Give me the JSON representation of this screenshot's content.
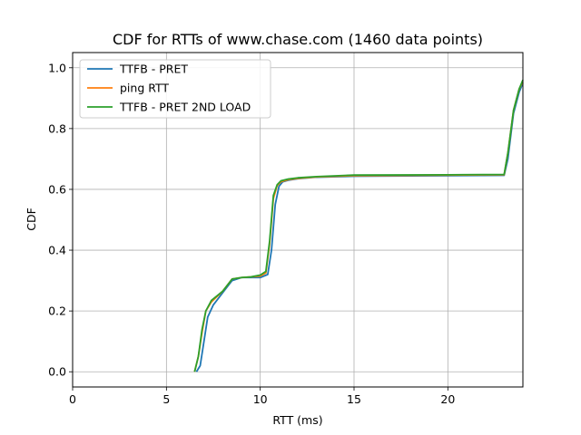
{
  "chart_data": {
    "type": "line",
    "title": "CDF for RTTs of www.chase.com (1460 data points)",
    "xlabel": "RTT (ms)",
    "ylabel": "CDF",
    "xlim": [
      0,
      24
    ],
    "ylim": [
      -0.05,
      1.05
    ],
    "xticks": [
      0,
      5,
      10,
      15,
      20
    ],
    "yticks": [
      0.0,
      0.2,
      0.4,
      0.6,
      0.8,
      1.0
    ],
    "xtick_labels": [
      "0",
      "5",
      "10",
      "15",
      "20"
    ],
    "ytick_labels": [
      "0.0",
      "0.2",
      "0.4",
      "0.6",
      "0.8",
      "1.0"
    ],
    "grid": true,
    "legend_position": "top-left",
    "series": [
      {
        "name": "TTFB - PRET",
        "color": "#1f77b4",
        "x": [
          6.6,
          6.8,
          7.0,
          7.2,
          7.5,
          8.0,
          8.5,
          9.0,
          9.5,
          10.0,
          10.4,
          10.6,
          10.8,
          11.0,
          11.2,
          11.5,
          12.0,
          13.0,
          15.0,
          20.0,
          23.0,
          23.2,
          23.5,
          23.8,
          24.0
        ],
        "y": [
          0.0,
          0.02,
          0.1,
          0.18,
          0.22,
          0.26,
          0.3,
          0.31,
          0.31,
          0.31,
          0.32,
          0.4,
          0.55,
          0.61,
          0.625,
          0.63,
          0.635,
          0.64,
          0.643,
          0.645,
          0.646,
          0.7,
          0.85,
          0.92,
          0.95
        ]
      },
      {
        "name": "ping RTT",
        "color": "#ff7f0e",
        "x": [
          6.5,
          6.7,
          6.9,
          7.1,
          7.4,
          8.0,
          8.5,
          9.0,
          9.5,
          10.0,
          10.3,
          10.5,
          10.7,
          10.9,
          11.1,
          11.5,
          12.0,
          13.0,
          15.0,
          20.0,
          23.0,
          23.2,
          23.5,
          23.8,
          24.0
        ],
        "y": [
          0.0,
          0.05,
          0.13,
          0.2,
          0.23,
          0.265,
          0.305,
          0.31,
          0.312,
          0.315,
          0.325,
          0.42,
          0.57,
          0.612,
          0.625,
          0.632,
          0.636,
          0.641,
          0.645,
          0.647,
          0.648,
          0.72,
          0.86,
          0.93,
          0.955
        ]
      },
      {
        "name": "TTFB - PRET 2ND LOAD",
        "color": "#2ca02c",
        "x": [
          6.5,
          6.7,
          6.9,
          7.1,
          7.4,
          8.0,
          8.5,
          9.0,
          9.5,
          10.0,
          10.3,
          10.5,
          10.7,
          10.9,
          11.1,
          11.5,
          12.0,
          13.0,
          15.0,
          20.0,
          23.0,
          23.2,
          23.5,
          23.8,
          24.0
        ],
        "y": [
          0.0,
          0.05,
          0.14,
          0.2,
          0.235,
          0.265,
          0.305,
          0.31,
          0.312,
          0.318,
          0.33,
          0.43,
          0.58,
          0.615,
          0.628,
          0.634,
          0.638,
          0.642,
          0.647,
          0.648,
          0.649,
          0.72,
          0.86,
          0.93,
          0.96
        ]
      }
    ]
  }
}
